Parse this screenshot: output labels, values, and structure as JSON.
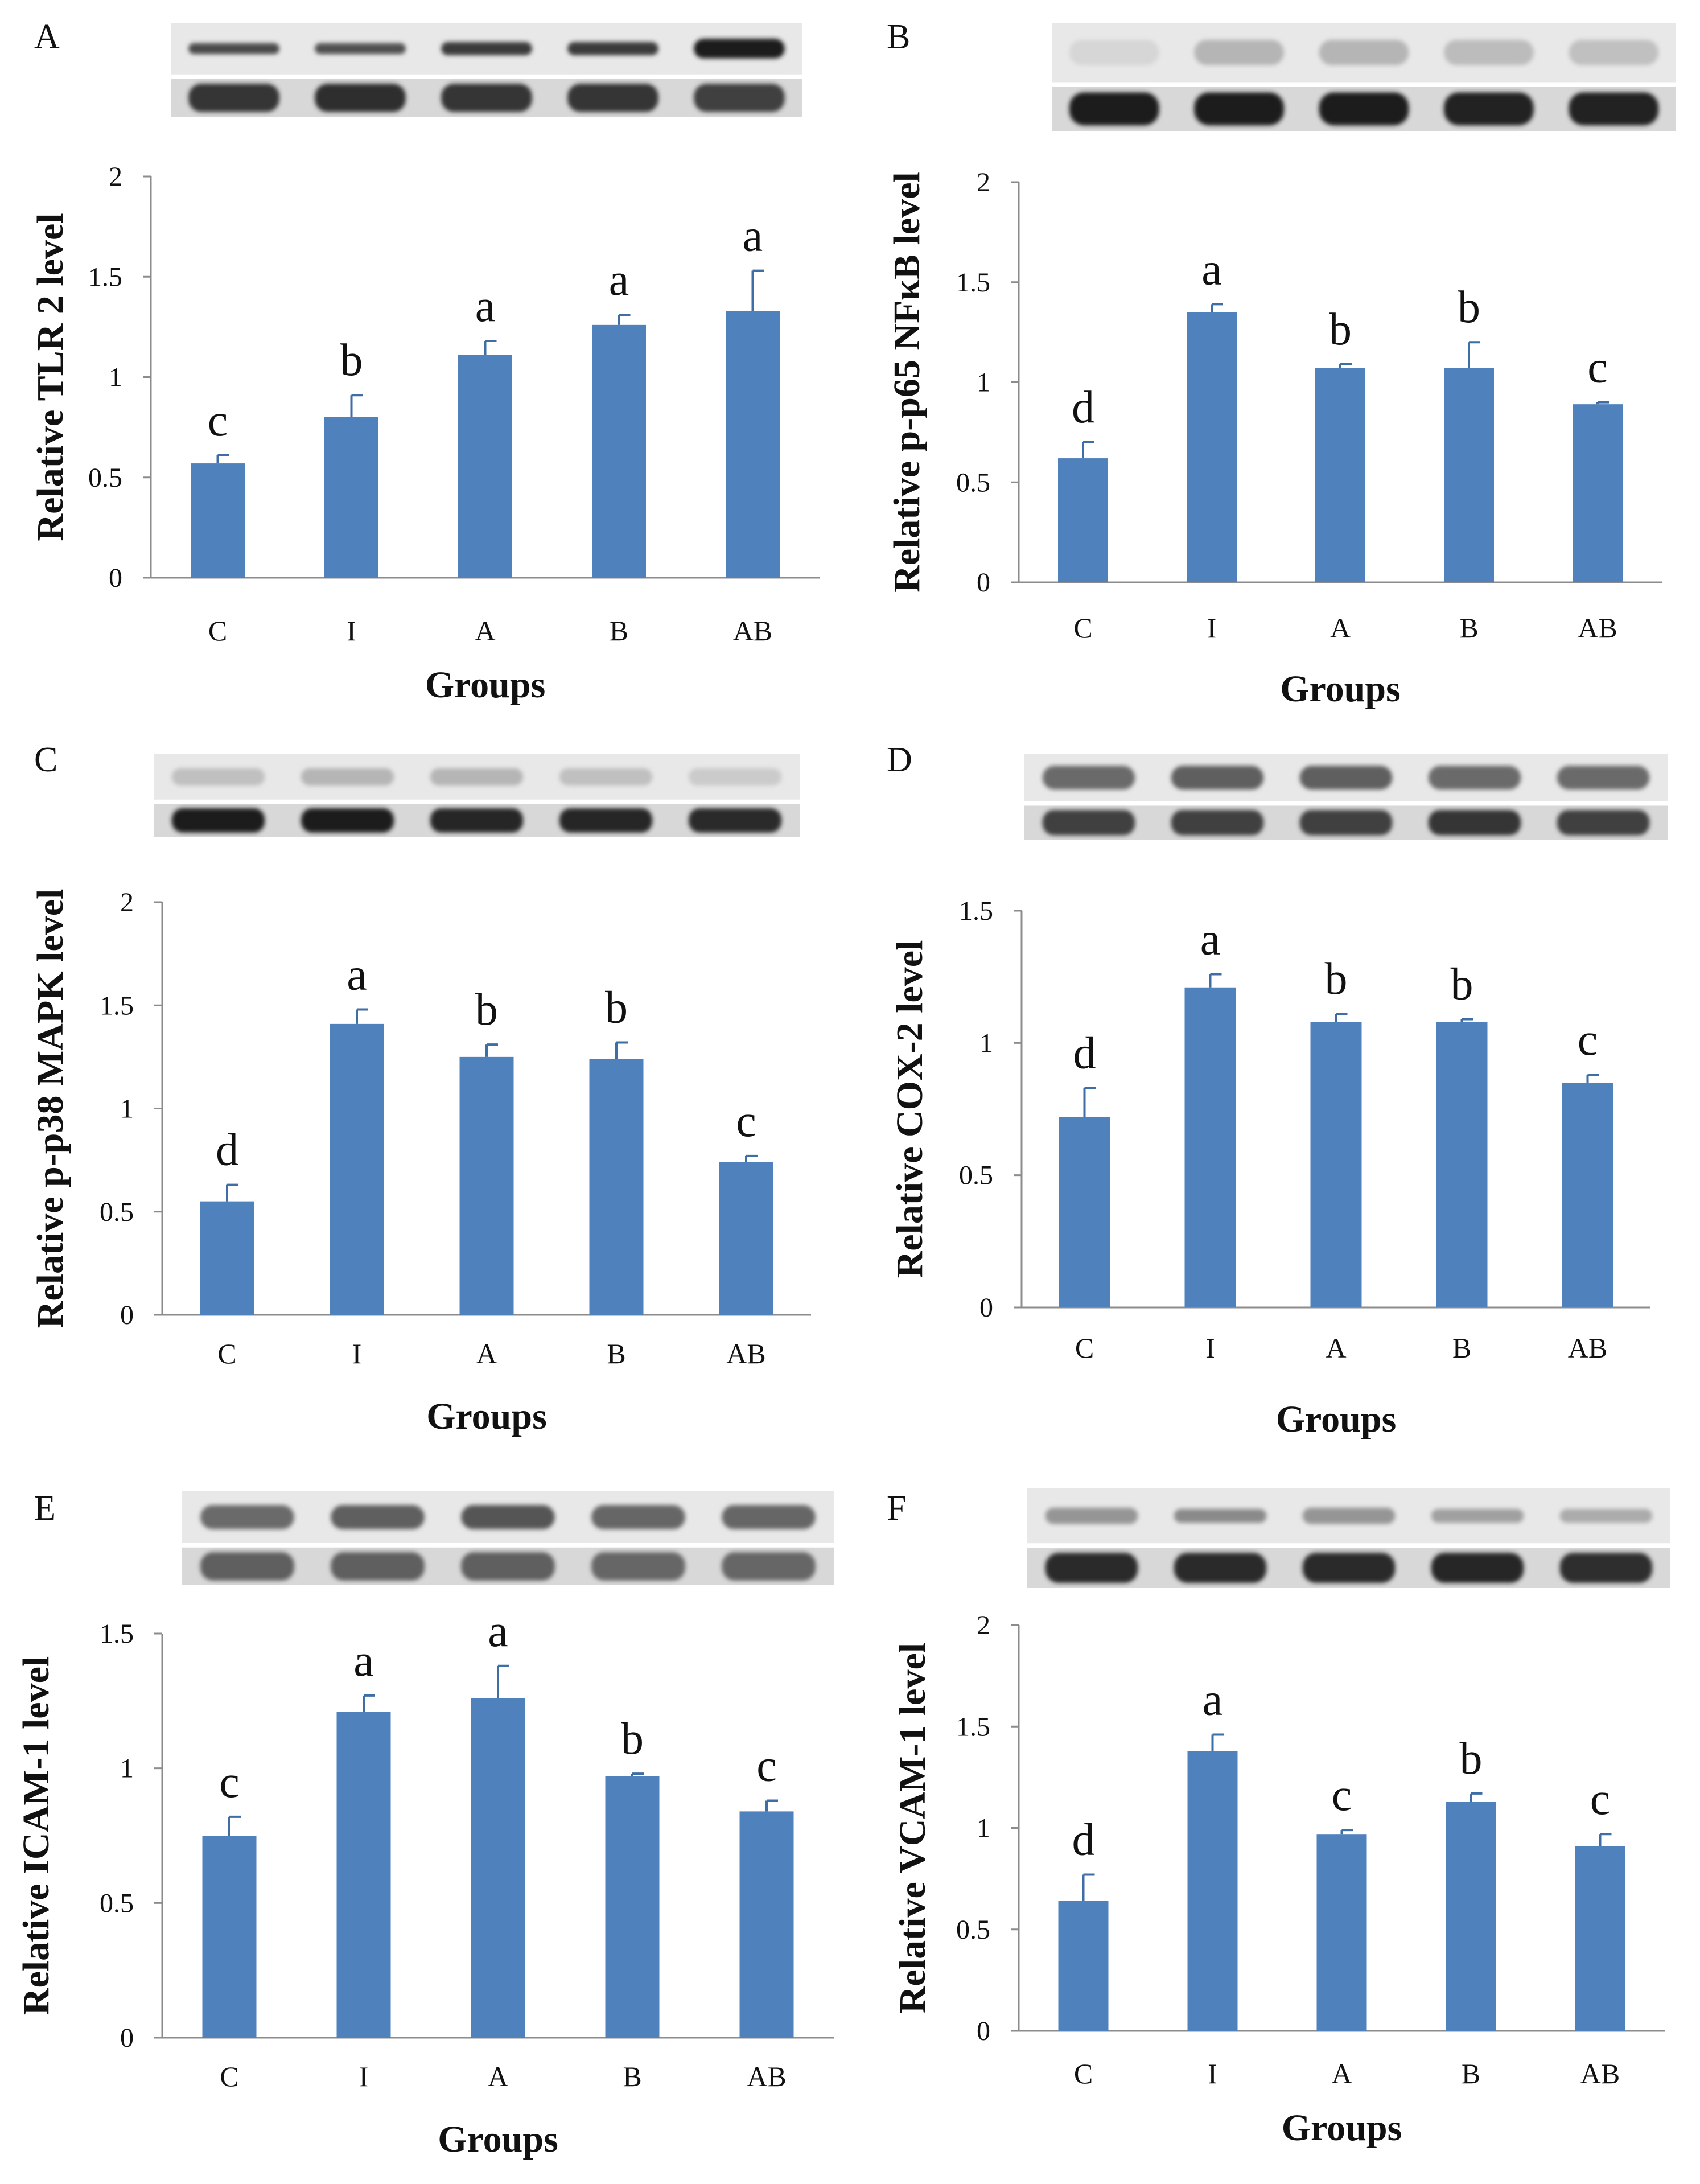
{
  "figure": {
    "colors": {
      "bar": "#4f81bd",
      "bar_dark": "#3e6ea6",
      "axis": "#8c8c8c",
      "text": "#111111",
      "blot_bg": "#e8e8e8",
      "band_dark": "#151515"
    }
  },
  "chart_data": [
    {
      "id": "A",
      "panel_label": "A",
      "type": "bar",
      "ylabel": "Relative TLR 2 level",
      "xlabel": "Groups",
      "categories": [
        "C",
        "I",
        "A",
        "B",
        "AB"
      ],
      "values": [
        0.57,
        0.8,
        1.11,
        1.26,
        1.33
      ],
      "errors": [
        0.04,
        0.11,
        0.07,
        0.05,
        0.2
      ],
      "sig_letters": [
        "c",
        "b",
        "a",
        "a",
        "a"
      ],
      "yticks": [
        0,
        0.5,
        1,
        1.5,
        2
      ],
      "ytick_labels": [
        "0",
        "0.5",
        "1",
        "1.5",
        "2"
      ],
      "ylim": [
        0,
        2
      ],
      "blot": {
        "top_band_intensity": [
          0.75,
          0.72,
          0.82,
          0.82,
          0.95
        ],
        "top_band_thickness": [
          0.25,
          0.25,
          0.3,
          0.3,
          0.45
        ],
        "bottom_band_intensity": [
          0.85,
          0.88,
          0.85,
          0.85,
          0.8
        ]
      }
    },
    {
      "id": "B",
      "panel_label": "B",
      "type": "bar",
      "ylabel": "Relative p-p65 NFκB level",
      "xlabel": "Groups",
      "categories": [
        "C",
        "I",
        "A",
        "B",
        "AB"
      ],
      "values": [
        0.62,
        1.35,
        1.07,
        1.07,
        0.89
      ],
      "errors": [
        0.08,
        0.04,
        0.02,
        0.13,
        0.01
      ],
      "sig_letters": [
        "d",
        "a",
        "b",
        "b",
        "c"
      ],
      "yticks": [
        0,
        0.5,
        1,
        1.5,
        2
      ],
      "ytick_labels": [
        "0",
        "0.5",
        "1",
        "1.5",
        "2"
      ],
      "ylim": [
        0,
        2
      ],
      "blot": {
        "top_band_intensity": [
          0.1,
          0.25,
          0.25,
          0.22,
          0.2
        ],
        "top_band_thickness": [
          0.5,
          0.5,
          0.5,
          0.5,
          0.5
        ],
        "bottom_band_intensity": [
          0.97,
          0.95,
          0.95,
          0.93,
          0.93
        ]
      }
    },
    {
      "id": "C",
      "panel_label": "C",
      "type": "bar",
      "ylabel": "Relative p-p38 MAPK level",
      "xlabel": "Groups",
      "categories": [
        "C",
        "I",
        "A",
        "B",
        "AB"
      ],
      "values": [
        0.55,
        1.41,
        1.25,
        1.24,
        0.74
      ],
      "errors": [
        0.08,
        0.07,
        0.06,
        0.08,
        0.03
      ],
      "sig_letters": [
        "d",
        "a",
        "b",
        "b",
        "c"
      ],
      "yticks": [
        0,
        0.5,
        1,
        1.5,
        2
      ],
      "ytick_labels": [
        "0",
        "0.5",
        "1",
        "1.5",
        "2"
      ],
      "ylim": [
        0,
        2
      ],
      "blot": {
        "top_band_intensity": [
          0.2,
          0.25,
          0.25,
          0.2,
          0.15
        ],
        "top_band_thickness": [
          0.45,
          0.45,
          0.45,
          0.45,
          0.45
        ],
        "bottom_band_intensity": [
          0.95,
          0.95,
          0.92,
          0.92,
          0.9
        ]
      }
    },
    {
      "id": "D",
      "panel_label": "D",
      "type": "bar",
      "ylabel": "Relative COX-2 level",
      "xlabel": "Groups",
      "categories": [
        "C",
        "I",
        "A",
        "B",
        "AB"
      ],
      "values": [
        0.72,
        1.21,
        1.08,
        1.08,
        0.85
      ],
      "errors": [
        0.11,
        0.05,
        0.03,
        0.01,
        0.03
      ],
      "sig_letters": [
        "d",
        "a",
        "b",
        "b",
        "c"
      ],
      "yticks": [
        0,
        0.5,
        1,
        1.5
      ],
      "ytick_labels": [
        "0",
        "0.5",
        "1",
        "1.5"
      ],
      "ylim": [
        0,
        1.5
      ],
      "blot": {
        "top_band_intensity": [
          0.6,
          0.65,
          0.65,
          0.6,
          0.6
        ],
        "top_band_thickness": [
          0.6,
          0.6,
          0.6,
          0.6,
          0.6
        ],
        "bottom_band_intensity": [
          0.8,
          0.8,
          0.8,
          0.85,
          0.8
        ]
      }
    },
    {
      "id": "E",
      "panel_label": "E",
      "type": "bar",
      "ylabel": "Relative ICAM-1 level",
      "xlabel": "Groups",
      "categories": [
        "C",
        "I",
        "A",
        "B",
        "AB"
      ],
      "values": [
        0.75,
        1.21,
        1.26,
        0.97,
        0.84
      ],
      "errors": [
        0.07,
        0.06,
        0.12,
        0.01,
        0.04
      ],
      "sig_letters": [
        "c",
        "a",
        "a",
        "b",
        "c"
      ],
      "yticks": [
        0,
        0.5,
        1,
        1.5
      ],
      "ytick_labels": [
        "0",
        "0.5",
        "1",
        "1.5"
      ],
      "ylim": [
        0,
        1.5
      ],
      "blot": {
        "top_band_intensity": [
          0.6,
          0.65,
          0.7,
          0.62,
          0.62
        ],
        "top_band_thickness": [
          0.55,
          0.55,
          0.55,
          0.55,
          0.55
        ],
        "bottom_band_intensity": [
          0.65,
          0.65,
          0.65,
          0.62,
          0.62
        ]
      }
    },
    {
      "id": "F",
      "panel_label": "F",
      "type": "bar",
      "ylabel": "Relative VCAM-1 level",
      "xlabel": "Groups",
      "categories": [
        "C",
        "I",
        "A",
        "B",
        "AB"
      ],
      "values": [
        0.64,
        1.38,
        0.97,
        1.13,
        0.91
      ],
      "errors": [
        0.13,
        0.08,
        0.02,
        0.04,
        0.06
      ],
      "sig_letters": [
        "d",
        "a",
        "c",
        "b",
        "c"
      ],
      "yticks": [
        0,
        0.5,
        1,
        1.5,
        2
      ],
      "ytick_labels": [
        "0",
        "0.5",
        "1",
        "1.5",
        "2"
      ],
      "ylim": [
        0,
        2
      ],
      "blot": {
        "top_band_intensity": [
          0.4,
          0.45,
          0.4,
          0.35,
          0.3
        ],
        "top_band_thickness": [
          0.35,
          0.3,
          0.35,
          0.3,
          0.3
        ],
        "bottom_band_intensity": [
          0.9,
          0.9,
          0.9,
          0.92,
          0.88
        ]
      }
    }
  ]
}
